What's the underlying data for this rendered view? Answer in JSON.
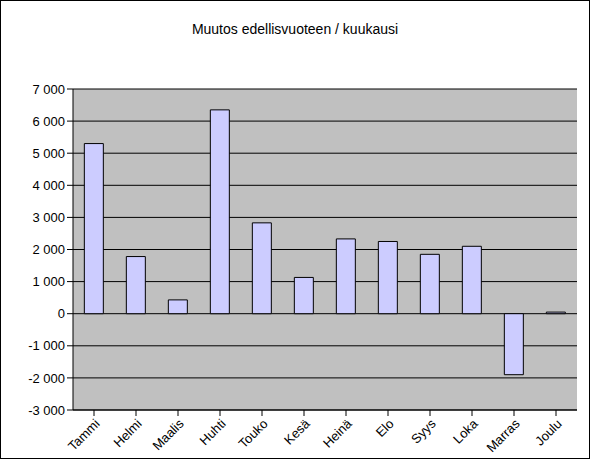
{
  "chart_data": {
    "type": "bar",
    "title": "Muutos edellisvuoteen / kuukausi",
    "categories": [
      "Tammi",
      "Helmi",
      "Maalis",
      "Huhti",
      "Touko",
      "Kesä",
      "Heinä",
      "Elo",
      "Syys",
      "Loka",
      "Marras",
      "Joulu"
    ],
    "values": [
      5300,
      1780,
      430,
      6350,
      2830,
      1130,
      2330,
      2250,
      1850,
      2100,
      -1900,
      50
    ],
    "color": "#ccccff",
    "ylim": [
      -3000,
      7000
    ],
    "yticks": [
      {
        "value": -3000,
        "label": "-3 000"
      },
      {
        "value": -2000,
        "label": "-2 000"
      },
      {
        "value": -1000,
        "label": "-1 000"
      },
      0,
      {
        "value": 1000,
        "label": "1 000"
      },
      {
        "value": 2000,
        "label": "2 000"
      },
      {
        "value": 3000,
        "label": "3 000"
      },
      {
        "value": 4000,
        "label": "4 000"
      },
      {
        "value": 5000,
        "label": "5 000"
      },
      {
        "value": 6000,
        "label": "6 000"
      },
      {
        "value": 7000,
        "label": "7 000"
      }
    ],
    "grid": true
  }
}
